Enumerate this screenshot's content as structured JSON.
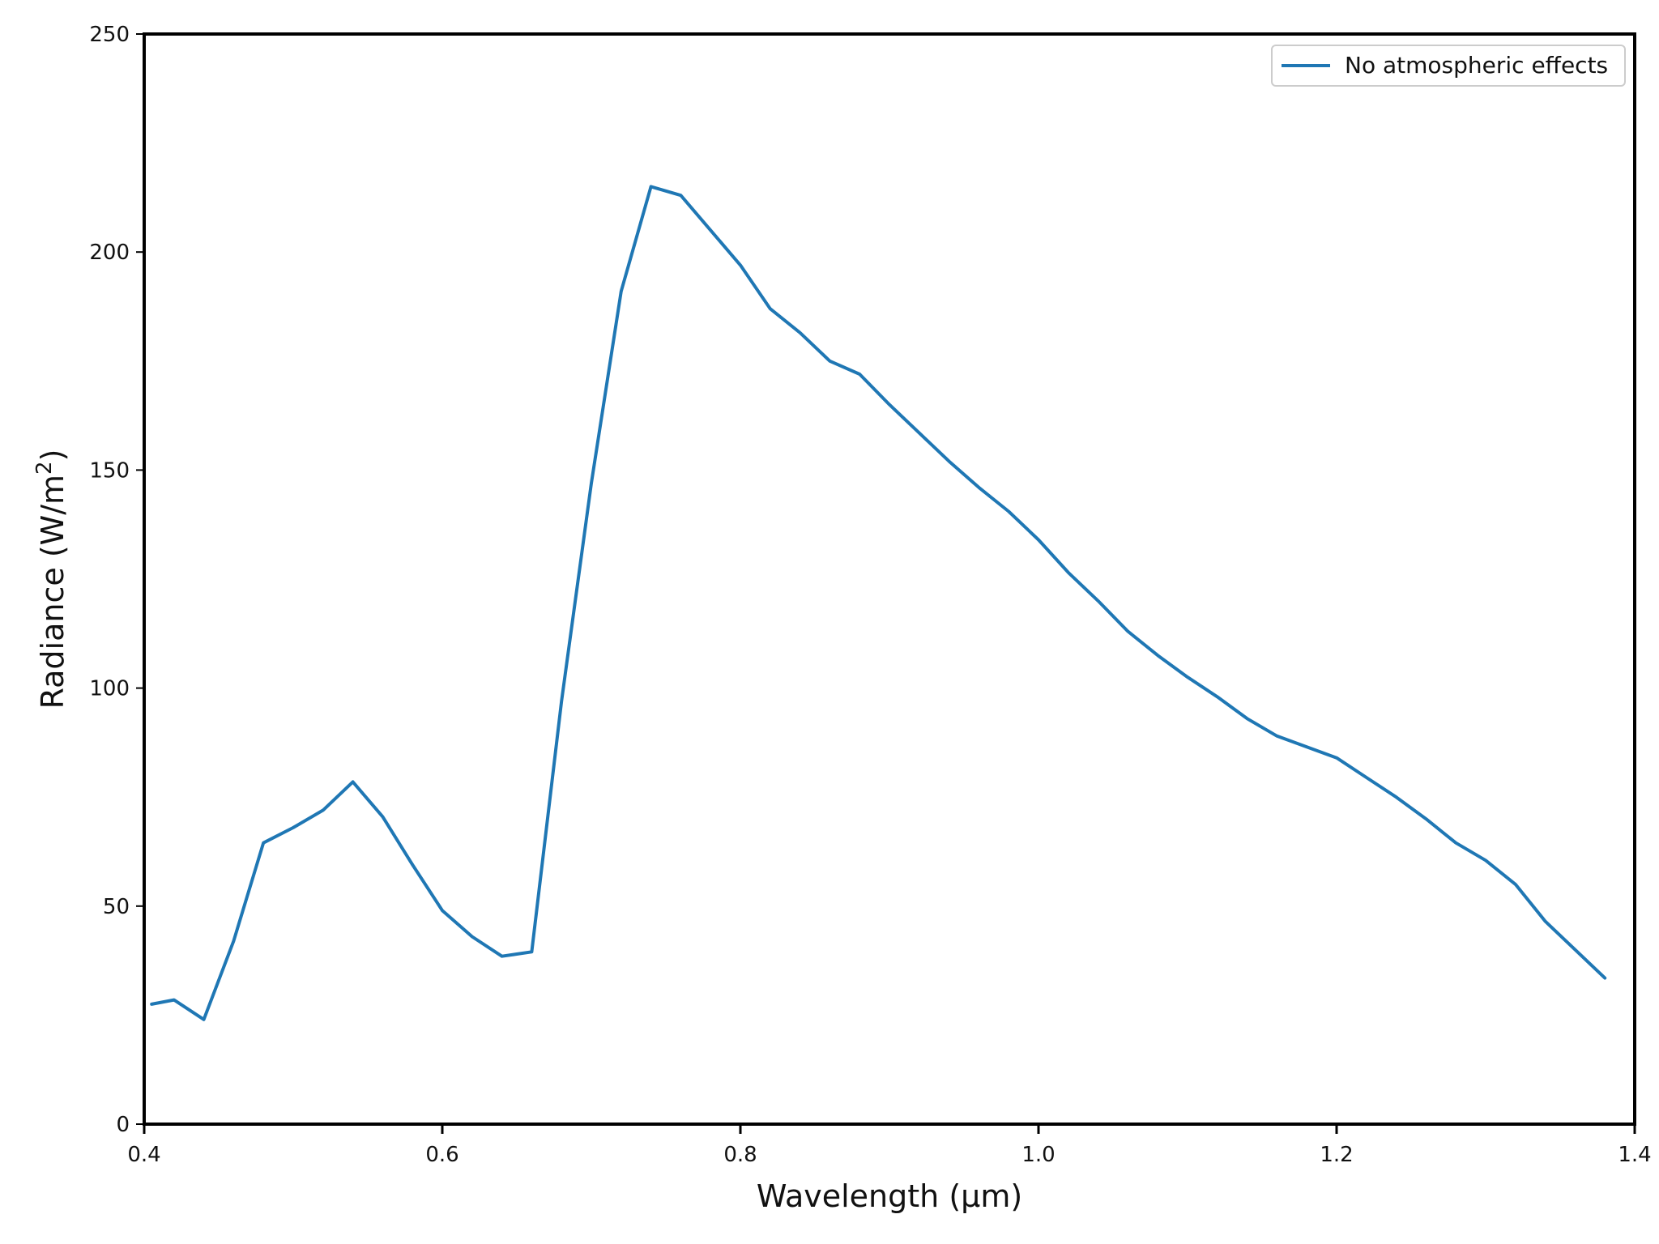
{
  "chart_data": {
    "type": "line",
    "title": "",
    "xlabel": "Wavelength (μm)",
    "ylabel_main": "Radiance (W/m",
    "ylabel_sup": "2",
    "ylabel_close": ")",
    "xlim": [
      0.4,
      1.4
    ],
    "ylim": [
      0,
      250
    ],
    "xticks": [
      {
        "value": 0.4,
        "label": "0.4"
      },
      {
        "value": 0.6,
        "label": "0.6"
      },
      {
        "value": 0.8,
        "label": "0.8"
      },
      {
        "value": 1.0,
        "label": "1.0"
      },
      {
        "value": 1.2,
        "label": "1.2"
      },
      {
        "value": 1.4,
        "label": "1.4"
      }
    ],
    "yticks": [
      {
        "value": 0,
        "label": "0"
      },
      {
        "value": 50,
        "label": "50"
      },
      {
        "value": 100,
        "label": "100"
      },
      {
        "value": 150,
        "label": "150"
      },
      {
        "value": 200,
        "label": "200"
      },
      {
        "value": 250,
        "label": "250"
      }
    ],
    "grid": false,
    "legend_position": "top-right",
    "series": [
      {
        "name": "No atmospheric effects",
        "color": "#1f77b4",
        "x": [
          0.405,
          0.42,
          0.44,
          0.46,
          0.48,
          0.5,
          0.52,
          0.54,
          0.56,
          0.58,
          0.6,
          0.62,
          0.64,
          0.66,
          0.68,
          0.7,
          0.72,
          0.74,
          0.76,
          0.78,
          0.8,
          0.82,
          0.84,
          0.86,
          0.88,
          0.9,
          0.92,
          0.94,
          0.96,
          0.98,
          1.0,
          1.02,
          1.04,
          1.06,
          1.08,
          1.1,
          1.12,
          1.14,
          1.16,
          1.18,
          1.2,
          1.22,
          1.24,
          1.26,
          1.28,
          1.3,
          1.32,
          1.34,
          1.36,
          1.38
        ],
        "y": [
          27.5,
          28.5,
          24,
          42,
          64.5,
          68,
          72,
          78.5,
          70.5,
          59.5,
          49,
          43,
          38.5,
          39.5,
          97,
          147,
          191,
          215,
          213,
          205,
          197,
          187,
          181.5,
          175,
          172,
          165,
          158.5,
          152,
          146,
          140.5,
          134,
          126.5,
          120,
          113,
          107.5,
          102.5,
          98,
          93,
          89,
          86.5,
          84,
          79.5,
          75,
          70,
          64.5,
          60.5,
          55,
          46.5,
          40,
          33.5
        ]
      }
    ]
  }
}
